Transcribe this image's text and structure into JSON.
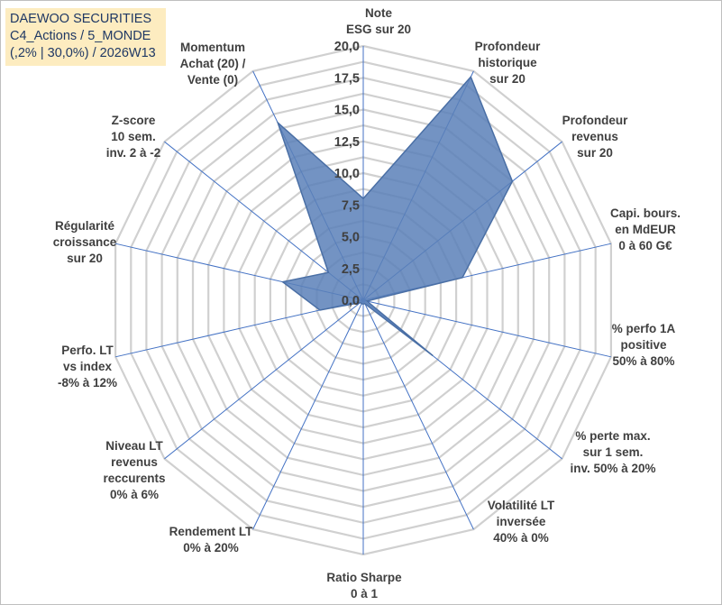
{
  "chart_data": {
    "type": "radar",
    "title_lines": [
      "DAEWOO SECURITIES",
      "C4_Actions / 5_MONDE",
      "(,2% | 30,0%) / 2026W13"
    ],
    "rlim": [
      0,
      20
    ],
    "tick_values": [
      0,
      2.5,
      5,
      7.5,
      10,
      12.5,
      15,
      17.5,
      20
    ],
    "tick_labels": [
      "0,0",
      "2,5",
      "5,0",
      "7,5",
      "10,0",
      "12,5",
      "15,0",
      "17,5",
      "20,0"
    ],
    "categories": [
      {
        "label": [
          "Note",
          "ESG sur 20"
        ]
      },
      {
        "label": [
          "Profondeur",
          "historique",
          "sur 20"
        ]
      },
      {
        "label": [
          "Profondeur",
          "revenus",
          "sur 20"
        ]
      },
      {
        "label": [
          "Capi. bours.",
          "en MdEUR",
          "0 à 60 G€"
        ]
      },
      {
        "label": [
          "% perfo 1A",
          "positive",
          "50% à 80%"
        ]
      },
      {
        "label": [
          "% perte max.",
          "sur 1 sem.",
          "inv. 50% à 20%"
        ]
      },
      {
        "label": [
          "Volatilité LT",
          "inversée",
          "40% à 0%"
        ]
      },
      {
        "label": [
          "Ratio Sharpe",
          "0 à 1"
        ]
      },
      {
        "label": [
          "Rendement LT",
          "0% à 20%"
        ]
      },
      {
        "label": [
          "Niveau LT",
          "revenus",
          "reccurents",
          "0% à 6%"
        ]
      },
      {
        "label": [
          "Perfo. LT",
          "vs index",
          "-8% à 12%"
        ]
      },
      {
        "label": [
          "Régularité",
          "croissance",
          "sur 20"
        ]
      },
      {
        "label": [
          "Z-score",
          "10 sem.",
          "inv. 2 à -2"
        ]
      },
      {
        "label": [
          "Momentum",
          "Achat (20) /",
          "Vente (0)"
        ]
      }
    ],
    "series": [
      {
        "name": "DAEWOO SECURITIES",
        "values": [
          8,
          19.5,
          15,
          8,
          0.3,
          7,
          0.3,
          0.3,
          0.3,
          0.3,
          3.5,
          6.5,
          3.5,
          15.5
        ]
      }
    ],
    "colors": {
      "fill": "#5b80b8",
      "fill_opacity": 0.85,
      "stroke": "#4a6fa5",
      "grid": "#d0d0d0",
      "spoke": "#4472c4",
      "title_bg": "#fdecc0",
      "title_text": "#1f3864"
    }
  }
}
